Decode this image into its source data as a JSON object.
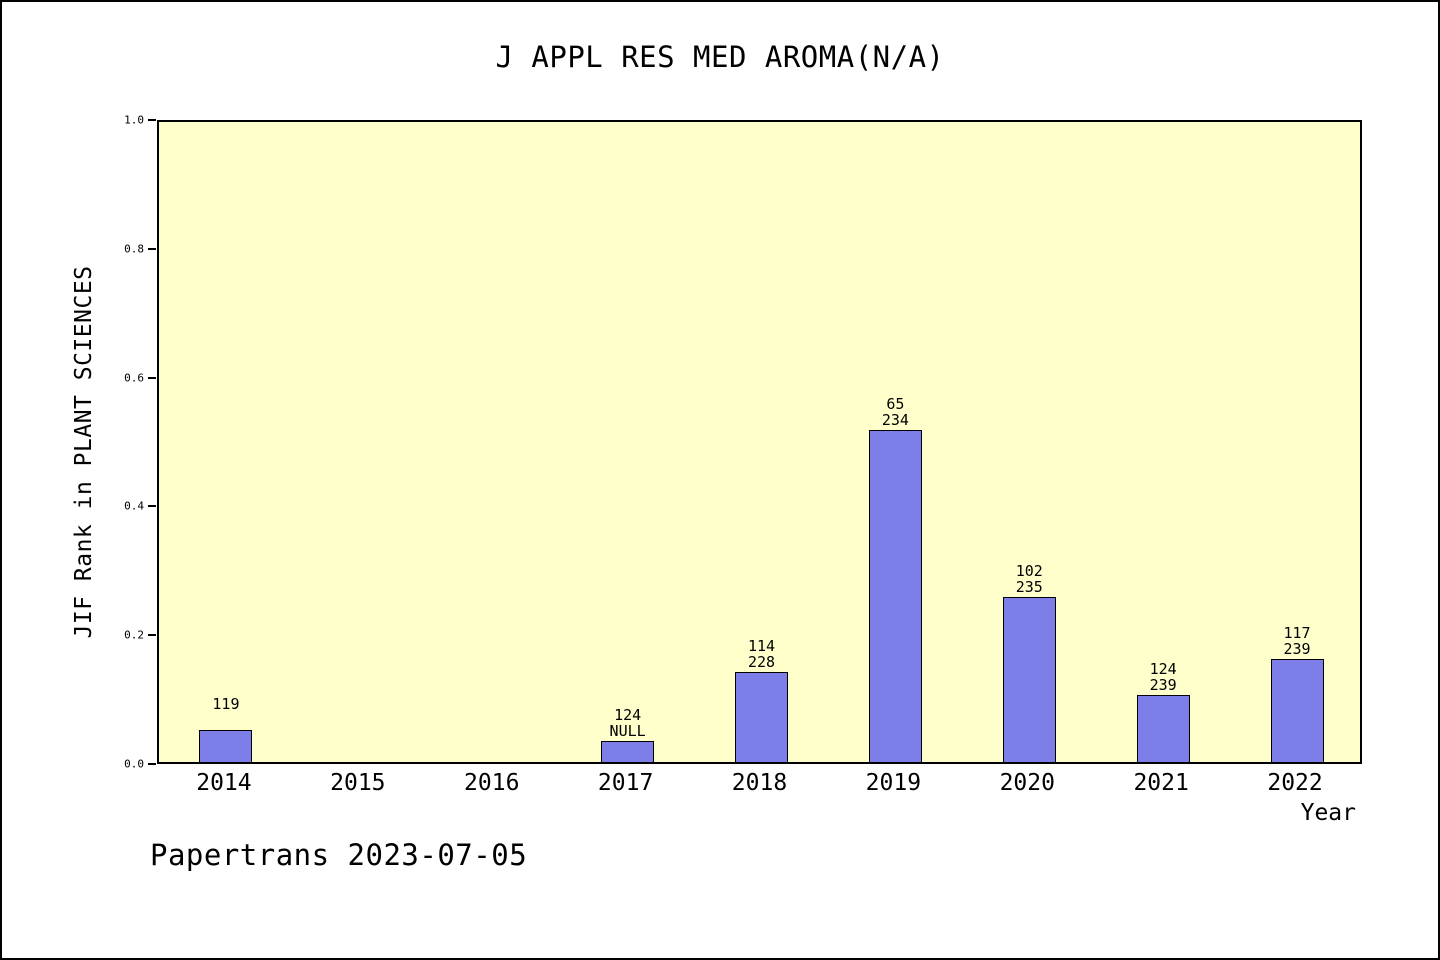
{
  "footer": {
    "text": "Papertrans 2023-07-05"
  },
  "chart_data": {
    "type": "bar",
    "title": "J APPL RES MED AROMA(N/A)",
    "xlabel": "Year",
    "ylabel": "JIF Rank in PLANT SCIENCES",
    "ylim": [
      0.0,
      1.0
    ],
    "grid": false,
    "legend": null,
    "yticks": [
      {
        "label": "0.0",
        "value": 0.0
      },
      {
        "label": "0.2",
        "value": 0.2
      },
      {
        "label": "0.4",
        "value": 0.4
      },
      {
        "label": "0.6",
        "value": 0.6
      },
      {
        "label": "0.8",
        "value": 0.8
      },
      {
        "label": "1.0",
        "value": 1.0
      }
    ],
    "categories": [
      "2014",
      "2015",
      "2016",
      "2017",
      "2018",
      "2019",
      "2020",
      "2021",
      "2022"
    ],
    "bars": [
      {
        "year": "2014",
        "height": 0.05,
        "rank": "119",
        "total": "",
        "label_lines": [
          "119",
          ""
        ]
      },
      {
        "year": "2015",
        "height": null,
        "rank": null,
        "total": null,
        "label_lines": []
      },
      {
        "year": "2016",
        "height": null,
        "rank": null,
        "total": null,
        "label_lines": []
      },
      {
        "year": "2017",
        "height": 0.033,
        "rank": "124",
        "total": "NULL",
        "label_lines": [
          "124",
          "NULL"
        ]
      },
      {
        "year": "2018",
        "height": 0.139,
        "rank": "114",
        "total": "228",
        "label_lines": [
          "114",
          "228"
        ]
      },
      {
        "year": "2019",
        "height": 0.515,
        "rank": "65",
        "total": "234",
        "label_lines": [
          "65",
          "234"
        ]
      },
      {
        "year": "2020",
        "height": 0.256,
        "rank": "102",
        "total": "235",
        "label_lines": [
          "102",
          "235"
        ]
      },
      {
        "year": "2021",
        "height": 0.104,
        "rank": "124",
        "total": "239",
        "label_lines": [
          "124",
          "239"
        ]
      },
      {
        "year": "2022",
        "height": 0.16,
        "rank": "117",
        "total": "239",
        "label_lines": [
          "117",
          "239"
        ]
      }
    ],
    "colors": {
      "bar_fill": "#7e7ee9",
      "bar_border": "#000000",
      "plot_background": "#ffffcc",
      "page_background": "#ffffff",
      "text": "#000000"
    }
  }
}
